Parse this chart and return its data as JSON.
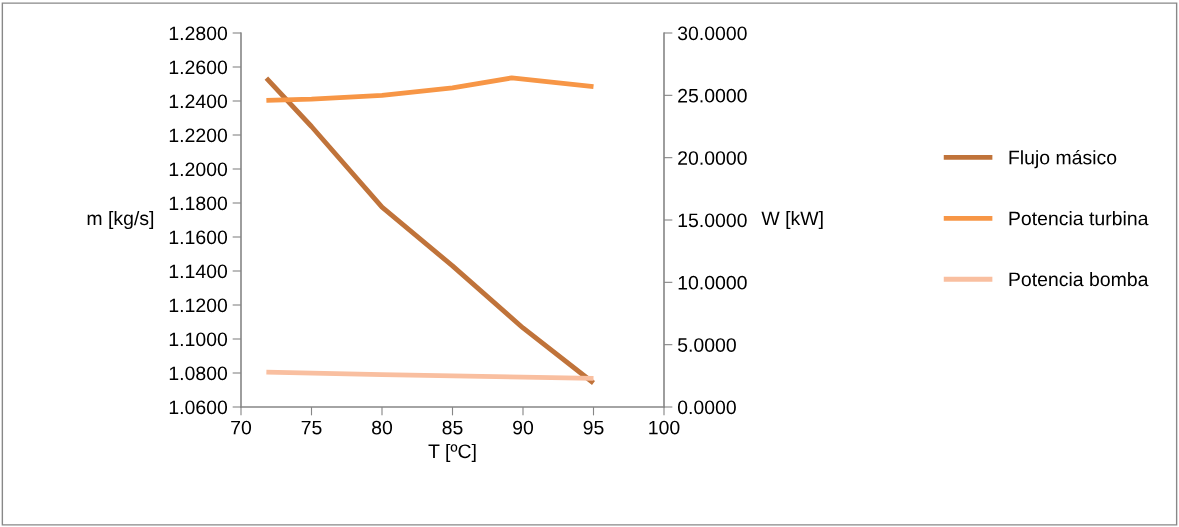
{
  "chart_data": {
    "type": "line",
    "xlabel": "T [ºC]",
    "ylabel": "m [kg/s]",
    "y2label": "W [kW]",
    "xlim": [
      70,
      100
    ],
    "xticks": [
      70,
      75,
      80,
      85,
      90,
      95,
      100
    ],
    "ylim": [
      1.06,
      1.28
    ],
    "yticks": [
      {
        "value": 1.06,
        "label": "1.0600"
      },
      {
        "value": 1.08,
        "label": "1.0800"
      },
      {
        "value": 1.1,
        "label": "1.1000"
      },
      {
        "value": 1.12,
        "label": "1.1200"
      },
      {
        "value": 1.14,
        "label": "1.1400"
      },
      {
        "value": 1.16,
        "label": "1.1600"
      },
      {
        "value": 1.18,
        "label": "1.1800"
      },
      {
        "value": 1.2,
        "label": "1.2000"
      },
      {
        "value": 1.22,
        "label": "1.2200"
      },
      {
        "value": 1.24,
        "label": "1.2400"
      },
      {
        "value": 1.26,
        "label": "1.2600"
      },
      {
        "value": 1.28,
        "label": "1.2800"
      }
    ],
    "y2lim": [
      0,
      30
    ],
    "y2ticks": [
      {
        "value": 0,
        "label": "0.0000"
      },
      {
        "value": 5,
        "label": "5.0000"
      },
      {
        "value": 10,
        "label": "10.0000"
      },
      {
        "value": 15,
        "label": "15.0000"
      },
      {
        "value": 20,
        "label": "20.0000"
      },
      {
        "value": 25,
        "label": "25.0000"
      },
      {
        "value": 30,
        "label": "30.0000"
      }
    ],
    "grid": false,
    "legend": "right",
    "marker": "none",
    "line_style": "solid",
    "series": [
      {
        "name": "Flujo másico",
        "color": "#c0733a",
        "x": [
          71.8,
          75,
          80,
          85,
          90,
          95
        ],
        "values": [
          1.2535,
          1.225,
          1.1776,
          1.143,
          1.1065,
          1.0741
        ]
      },
      {
        "name": "Potencia turbina",
        "color": "#f79646",
        "axis": "y2",
        "x": [
          71.8,
          75,
          80,
          85,
          89.2,
          95
        ],
        "values": [
          24.6,
          24.7,
          25.0,
          25.6,
          26.4,
          25.7
        ]
      },
      {
        "name": "Potencia bomba",
        "color": "#f9bfa0",
        "axis": "y2",
        "x": [
          71.8,
          80,
          90,
          95
        ],
        "values": [
          2.8,
          2.6,
          2.4,
          2.3
        ]
      }
    ]
  }
}
